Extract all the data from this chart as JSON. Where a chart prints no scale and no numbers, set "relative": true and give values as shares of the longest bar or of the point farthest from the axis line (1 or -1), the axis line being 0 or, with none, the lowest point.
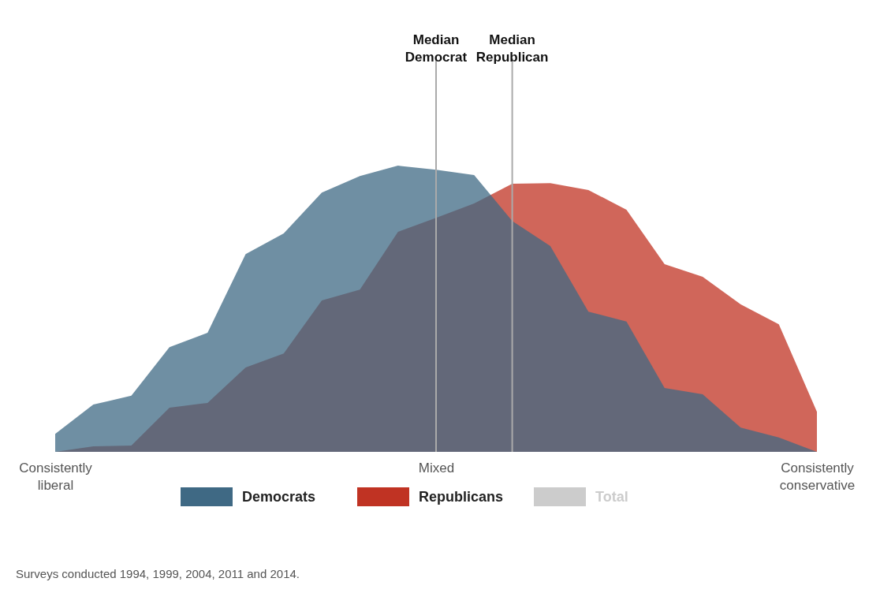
{
  "chart_data": {
    "type": "area",
    "relative": true,
    "categories": [
      "Consistently liberal",
      null,
      null,
      null,
      null,
      null,
      null,
      null,
      null,
      null,
      "Mixed",
      null,
      null,
      null,
      null,
      null,
      null,
      null,
      null,
      null,
      "Consistently conservative"
    ],
    "series": [
      {
        "name": "Democrats",
        "color": "#3f6984",
        "values": [
          0.063,
          0.165,
          0.196,
          0.366,
          0.416,
          0.691,
          0.763,
          0.906,
          0.964,
          1,
          0.986,
          0.967,
          0.807,
          0.719,
          0.49,
          0.455,
          0.223,
          0.201,
          0.085,
          0.05,
          0
        ]
      },
      {
        "name": "Republicans",
        "color": "#c03323",
        "values": [
          0,
          0.019,
          0.022,
          0.154,
          0.171,
          0.295,
          0.344,
          0.529,
          0.567,
          0.769,
          0.818,
          0.868,
          0.937,
          0.939,
          0.915,
          0.846,
          0.656,
          0.612,
          0.515,
          0.446,
          0.14
        ]
      },
      {
        "name": "Total",
        "color": "#cccccc",
        "values": [
          null,
          null,
          null,
          null,
          null,
          null,
          null,
          null,
          null,
          null,
          null,
          null,
          null,
          null,
          null,
          null,
          null,
          null,
          null,
          null,
          null
        ]
      }
    ],
    "legend": "bottom",
    "annotations": [
      {
        "text": "Median Democrat"
      },
      {
        "text": "Median Republican"
      },
      "Surveys conducted 1994, 1999, 2004, 2011 and 2014."
    ]
  }
}
